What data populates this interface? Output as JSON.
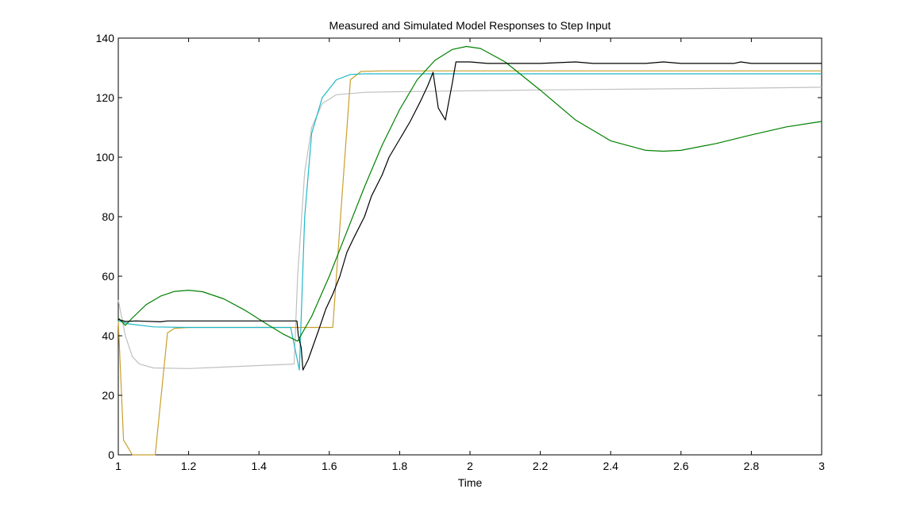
{
  "chart_data": {
    "type": "line",
    "title": "Measured and Simulated Model Responses to Step Input",
    "xlabel": "Time",
    "ylabel": "",
    "xlim": [
      1,
      3
    ],
    "ylim": [
      0,
      140
    ],
    "xticks": [
      1,
      1.2,
      1.4,
      1.6,
      1.8,
      2,
      2.2,
      2.4,
      2.6,
      2.8,
      3
    ],
    "xtick_labels": [
      "1",
      "1.2",
      "1.4",
      "1.6",
      "1.8",
      "2",
      "2.2",
      "2.4",
      "2.6",
      "2.8",
      "3"
    ],
    "yticks": [
      0,
      20,
      40,
      60,
      80,
      100,
      120,
      140
    ],
    "ytick_labels": [
      "0",
      "20",
      "40",
      "60",
      "80",
      "100",
      "120",
      "140"
    ],
    "grid": false,
    "legend": "none",
    "series": [
      {
        "color": "#c0c0c0",
        "points": [
          [
            1,
            52
          ],
          [
            1.02,
            40
          ],
          [
            1.04,
            33
          ],
          [
            1.06,
            30.5
          ],
          [
            1.1,
            29.2
          ],
          [
            1.2,
            29
          ],
          [
            1.3,
            29.5
          ],
          [
            1.4,
            30
          ],
          [
            1.5,
            30.5
          ],
          [
            1.51,
            60
          ],
          [
            1.53,
            95
          ],
          [
            1.55,
            110
          ],
          [
            1.58,
            118
          ],
          [
            1.62,
            121
          ],
          [
            1.7,
            121.8
          ],
          [
            1.8,
            122
          ],
          [
            2,
            122.3
          ],
          [
            2.2,
            122.6
          ],
          [
            2.5,
            122.9
          ],
          [
            2.8,
            123.2
          ],
          [
            3,
            123.5
          ]
        ]
      },
      {
        "color": "#c8a02c",
        "points": [
          [
            1,
            45
          ],
          [
            1.015,
            5
          ],
          [
            1.04,
            0
          ],
          [
            1.105,
            0
          ],
          [
            1.14,
            41
          ],
          [
            1.16,
            42.5
          ],
          [
            1.2,
            42.8
          ],
          [
            1.61,
            42.8
          ],
          [
            1.635,
            85
          ],
          [
            1.66,
            126
          ],
          [
            1.69,
            128.8
          ],
          [
            1.75,
            129
          ],
          [
            3,
            129
          ]
        ]
      },
      {
        "color": "#1fb8c8",
        "points": [
          [
            1,
            45
          ],
          [
            1.03,
            44
          ],
          [
            1.1,
            43
          ],
          [
            1.2,
            42.8
          ],
          [
            1.49,
            42.8
          ],
          [
            1.515,
            28.5
          ],
          [
            1.53,
            80
          ],
          [
            1.55,
            108
          ],
          [
            1.58,
            120
          ],
          [
            1.62,
            126
          ],
          [
            1.66,
            127.8
          ],
          [
            1.7,
            128
          ],
          [
            3,
            128
          ]
        ]
      },
      {
        "color": "#008000",
        "points": [
          [
            1,
            46
          ],
          [
            1.02,
            43.5
          ],
          [
            1.04,
            46
          ],
          [
            1.08,
            50.5
          ],
          [
            1.12,
            53.3
          ],
          [
            1.16,
            54.9
          ],
          [
            1.2,
            55.3
          ],
          [
            1.24,
            54.8
          ],
          [
            1.3,
            52.4
          ],
          [
            1.36,
            48.6
          ],
          [
            1.42,
            44.1
          ],
          [
            1.47,
            40.5
          ],
          [
            1.51,
            38.2
          ],
          [
            1.55,
            46.5
          ],
          [
            1.6,
            60
          ],
          [
            1.65,
            75
          ],
          [
            1.7,
            90
          ],
          [
            1.75,
            104
          ],
          [
            1.8,
            116
          ],
          [
            1.85,
            126
          ],
          [
            1.9,
            132.5
          ],
          [
            1.95,
            136.2
          ],
          [
            1.99,
            137.2
          ],
          [
            2.03,
            136.5
          ],
          [
            2.1,
            132
          ],
          [
            2.2,
            122.5
          ],
          [
            2.3,
            112.5
          ],
          [
            2.4,
            105.5
          ],
          [
            2.5,
            102.3
          ],
          [
            2.55,
            102
          ],
          [
            2.6,
            102.3
          ],
          [
            2.7,
            104.6
          ],
          [
            2.8,
            107.5
          ],
          [
            2.9,
            110.2
          ],
          [
            3,
            112
          ]
        ]
      },
      {
        "color": "#000000",
        "points": [
          [
            1,
            45.5
          ],
          [
            1.02,
            44.8
          ],
          [
            1.05,
            45
          ],
          [
            1.12,
            44.7
          ],
          [
            1.14,
            45
          ],
          [
            1.5,
            45
          ],
          [
            1.508,
            45
          ],
          [
            1.512,
            40
          ],
          [
            1.52,
            36
          ],
          [
            1.525,
            28.5
          ],
          [
            1.54,
            32
          ],
          [
            1.57,
            42
          ],
          [
            1.59,
            49
          ],
          [
            1.61,
            54
          ],
          [
            1.63,
            60
          ],
          [
            1.65,
            68
          ],
          [
            1.67,
            73
          ],
          [
            1.7,
            80
          ],
          [
            1.72,
            87
          ],
          [
            1.75,
            94
          ],
          [
            1.77,
            100
          ],
          [
            1.8,
            106
          ],
          [
            1.83,
            112
          ],
          [
            1.86,
            119
          ],
          [
            1.88,
            124
          ],
          [
            1.895,
            128.5
          ],
          [
            1.91,
            116.5
          ],
          [
            1.93,
            112.5
          ],
          [
            1.95,
            125
          ],
          [
            1.96,
            132
          ],
          [
            1.98,
            132
          ],
          [
            2,
            132
          ],
          [
            2.05,
            131.5
          ],
          [
            2.1,
            131.5
          ],
          [
            2.2,
            131.5
          ],
          [
            2.3,
            132
          ],
          [
            2.35,
            131.5
          ],
          [
            2.5,
            131.5
          ],
          [
            2.55,
            132
          ],
          [
            2.6,
            131.5
          ],
          [
            2.75,
            131.5
          ],
          [
            2.77,
            132
          ],
          [
            2.8,
            131.5
          ],
          [
            3,
            131.5
          ]
        ]
      }
    ]
  }
}
